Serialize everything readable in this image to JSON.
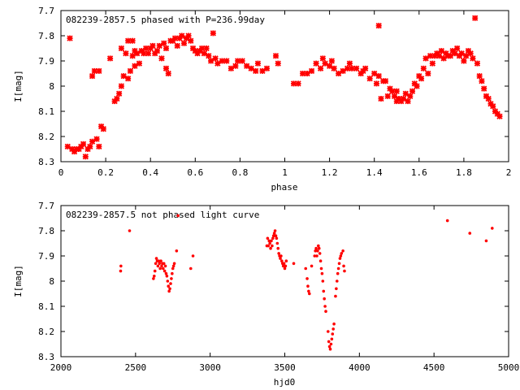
{
  "chart_data": [
    {
      "type": "scatter",
      "title": "082239-2857.5 phased with P=236.99day",
      "xlabel": "phase",
      "ylabel": "I[mag]",
      "xlim": [
        0,
        2
      ],
      "ylim": [
        8.3,
        7.7
      ],
      "y_inverted": true,
      "grid": false,
      "marker_color": "#ff0000",
      "xticks": [
        "0",
        "0.2",
        "0.4",
        "0.6",
        "0.8",
        "1",
        "1.2",
        "1.4",
        "1.6",
        "1.8",
        "2"
      ],
      "yticks": [
        "7.7",
        "7.8",
        "7.9",
        "8",
        "8.1",
        "8.2",
        "8.3"
      ],
      "points": [
        [
          0.03,
          8.24
        ],
        [
          0.04,
          7.81
        ],
        [
          0.05,
          8.25
        ],
        [
          0.06,
          8.26
        ],
        [
          0.07,
          8.25
        ],
        [
          0.08,
          8.25
        ],
        [
          0.09,
          8.24
        ],
        [
          0.1,
          8.23
        ],
        [
          0.11,
          8.28
        ],
        [
          0.12,
          8.25
        ],
        [
          0.13,
          8.24
        ],
        [
          0.14,
          8.22
        ],
        [
          0.14,
          7.96
        ],
        [
          0.15,
          7.94
        ],
        [
          0.16,
          8.21
        ],
        [
          0.17,
          7.94
        ],
        [
          0.17,
          8.24
        ],
        [
          0.18,
          8.16
        ],
        [
          0.19,
          8.17
        ],
        [
          0.22,
          7.89
        ],
        [
          0.24,
          8.06
        ],
        [
          0.25,
          8.05
        ],
        [
          0.26,
          8.03
        ],
        [
          0.27,
          8.0
        ],
        [
          0.27,
          7.85
        ],
        [
          0.28,
          7.96
        ],
        [
          0.29,
          7.87
        ],
        [
          0.3,
          7.82
        ],
        [
          0.3,
          7.97
        ],
        [
          0.31,
          7.94
        ],
        [
          0.32,
          7.82
        ],
        [
          0.32,
          7.88
        ],
        [
          0.33,
          7.92
        ],
        [
          0.33,
          7.86
        ],
        [
          0.34,
          7.87
        ],
        [
          0.35,
          7.91
        ],
        [
          0.36,
          7.86
        ],
        [
          0.37,
          7.87
        ],
        [
          0.38,
          7.85
        ],
        [
          0.39,
          7.87
        ],
        [
          0.4,
          7.85
        ],
        [
          0.41,
          7.84
        ],
        [
          0.42,
          7.87
        ],
        [
          0.43,
          7.86
        ],
        [
          0.44,
          7.84
        ],
        [
          0.45,
          7.89
        ],
        [
          0.46,
          7.83
        ],
        [
          0.47,
          7.85
        ],
        [
          0.47,
          7.93
        ],
        [
          0.48,
          7.95
        ],
        [
          0.49,
          7.82
        ],
        [
          0.5,
          7.82
        ],
        [
          0.51,
          7.81
        ],
        [
          0.52,
          7.84
        ],
        [
          0.53,
          7.81
        ],
        [
          0.54,
          7.8
        ],
        [
          0.55,
          7.83
        ],
        [
          0.56,
          7.81
        ],
        [
          0.57,
          7.8
        ],
        [
          0.58,
          7.82
        ],
        [
          0.59,
          7.85
        ],
        [
          0.6,
          7.86
        ],
        [
          0.61,
          7.87
        ],
        [
          0.62,
          7.86
        ],
        [
          0.63,
          7.85
        ],
        [
          0.64,
          7.87
        ],
        [
          0.65,
          7.85
        ],
        [
          0.66,
          7.88
        ],
        [
          0.67,
          7.9
        ],
        [
          0.68,
          7.79
        ],
        [
          0.69,
          7.89
        ],
        [
          0.7,
          7.91
        ],
        [
          0.72,
          7.9
        ],
        [
          0.74,
          7.9
        ],
        [
          0.76,
          7.93
        ],
        [
          0.78,
          7.92
        ],
        [
          0.79,
          7.9
        ],
        [
          0.81,
          7.9
        ],
        [
          0.83,
          7.92
        ],
        [
          0.85,
          7.93
        ],
        [
          0.87,
          7.94
        ],
        [
          0.88,
          7.91
        ],
        [
          0.9,
          7.94
        ],
        [
          0.92,
          7.93
        ],
        [
          0.96,
          7.88
        ],
        [
          0.97,
          7.91
        ],
        [
          1.04,
          7.99
        ],
        [
          1.06,
          7.99
        ],
        [
          1.08,
          7.95
        ],
        [
          1.1,
          7.95
        ],
        [
          1.12,
          7.94
        ],
        [
          1.14,
          7.91
        ],
        [
          1.16,
          7.93
        ],
        [
          1.17,
          7.89
        ],
        [
          1.18,
          7.91
        ],
        [
          1.2,
          7.92
        ],
        [
          1.21,
          7.9
        ],
        [
          1.22,
          7.93
        ],
        [
          1.24,
          7.95
        ],
        [
          1.26,
          7.94
        ],
        [
          1.28,
          7.93
        ],
        [
          1.29,
          7.91
        ],
        [
          1.3,
          7.93
        ],
        [
          1.32,
          7.93
        ],
        [
          1.34,
          7.95
        ],
        [
          1.35,
          7.94
        ],
        [
          1.36,
          7.93
        ],
        [
          1.38,
          7.97
        ],
        [
          1.4,
          7.95
        ],
        [
          1.41,
          7.99
        ],
        [
          1.42,
          7.96
        ],
        [
          1.42,
          7.76
        ],
        [
          1.43,
          8.05
        ],
        [
          1.44,
          7.98
        ],
        [
          1.45,
          7.98
        ],
        [
          1.46,
          8.04
        ],
        [
          1.47,
          8.01
        ],
        [
          1.48,
          8.02
        ],
        [
          1.49,
          8.04
        ],
        [
          1.5,
          8.02
        ],
        [
          1.5,
          8.06
        ],
        [
          1.51,
          8.05
        ],
        [
          1.52,
          8.06
        ],
        [
          1.53,
          8.05
        ],
        [
          1.54,
          8.03
        ],
        [
          1.55,
          8.06
        ],
        [
          1.56,
          8.04
        ],
        [
          1.57,
          8.02
        ],
        [
          1.58,
          7.99
        ],
        [
          1.59,
          8.0
        ],
        [
          1.6,
          7.96
        ],
        [
          1.61,
          7.97
        ],
        [
          1.62,
          7.93
        ],
        [
          1.63,
          7.89
        ],
        [
          1.64,
          7.95
        ],
        [
          1.65,
          7.88
        ],
        [
          1.66,
          7.91
        ],
        [
          1.67,
          7.88
        ],
        [
          1.68,
          7.87
        ],
        [
          1.69,
          7.88
        ],
        [
          1.7,
          7.86
        ],
        [
          1.71,
          7.89
        ],
        [
          1.72,
          7.87
        ],
        [
          1.73,
          7.88
        ],
        [
          1.74,
          7.88
        ],
        [
          1.75,
          7.86
        ],
        [
          1.76,
          7.87
        ],
        [
          1.77,
          7.85
        ],
        [
          1.78,
          7.88
        ],
        [
          1.79,
          7.87
        ],
        [
          1.8,
          7.9
        ],
        [
          1.81,
          7.88
        ],
        [
          1.82,
          7.86
        ],
        [
          1.83,
          7.87
        ],
        [
          1.84,
          7.89
        ],
        [
          1.85,
          7.73
        ],
        [
          1.86,
          7.91
        ],
        [
          1.87,
          7.96
        ],
        [
          1.88,
          7.98
        ],
        [
          1.89,
          8.01
        ],
        [
          1.9,
          8.04
        ],
        [
          1.91,
          8.05
        ],
        [
          1.92,
          8.07
        ],
        [
          1.93,
          8.08
        ],
        [
          1.94,
          8.1
        ],
        [
          1.95,
          8.11
        ],
        [
          1.96,
          8.12
        ]
      ]
    },
    {
      "type": "scatter",
      "title": "082239-2857.5 not phased light curve",
      "xlabel": "hjd0",
      "ylabel": "I[mag]",
      "xlim": [
        2000,
        5000
      ],
      "ylim": [
        8.3,
        7.7
      ],
      "y_inverted": true,
      "grid": false,
      "marker_color": "#ff0000",
      "xticks": [
        "2000",
        "2500",
        "3000",
        "3500",
        "4000",
        "4500",
        "5000"
      ],
      "yticks": [
        "7.7",
        "7.8",
        "7.9",
        "8",
        "8.1",
        "8.2",
        "8.3"
      ],
      "points": [
        [
          2400,
          7.96
        ],
        [
          2402,
          7.94
        ],
        [
          2460,
          7.8
        ],
        [
          2620,
          7.99
        ],
        [
          2625,
          7.98
        ],
        [
          2630,
          7.96
        ],
        [
          2635,
          7.93
        ],
        [
          2640,
          7.91
        ],
        [
          2645,
          7.92
        ],
        [
          2650,
          7.94
        ],
        [
          2655,
          7.92
        ],
        [
          2660,
          7.93
        ],
        [
          2665,
          7.95
        ],
        [
          2670,
          7.92
        ],
        [
          2675,
          7.94
        ],
        [
          2680,
          7.93
        ],
        [
          2685,
          7.95
        ],
        [
          2690,
          7.93
        ],
        [
          2695,
          7.96
        ],
        [
          2700,
          7.94
        ],
        [
          2705,
          7.97
        ],
        [
          2710,
          7.98
        ],
        [
          2715,
          8.0
        ],
        [
          2720,
          8.02
        ],
        [
          2725,
          8.04
        ],
        [
          2730,
          8.03
        ],
        [
          2735,
          8.01
        ],
        [
          2740,
          7.99
        ],
        [
          2745,
          7.97
        ],
        [
          2750,
          7.95
        ],
        [
          2755,
          7.94
        ],
        [
          2760,
          7.93
        ],
        [
          2775,
          7.88
        ],
        [
          2785,
          7.74
        ],
        [
          2870,
          7.95
        ],
        [
          2885,
          7.9
        ],
        [
          3380,
          7.86
        ],
        [
          3385,
          7.83
        ],
        [
          3390,
          7.86
        ],
        [
          3395,
          7.84
        ],
        [
          3400,
          7.85
        ],
        [
          3405,
          7.87
        ],
        [
          3410,
          7.84
        ],
        [
          3415,
          7.86
        ],
        [
          3420,
          7.83
        ],
        [
          3425,
          7.82
        ],
        [
          3430,
          7.81
        ],
        [
          3435,
          7.8
        ],
        [
          3440,
          7.82
        ],
        [
          3445,
          7.83
        ],
        [
          3450,
          7.85
        ],
        [
          3455,
          7.87
        ],
        [
          3460,
          7.89
        ],
        [
          3465,
          7.9
        ],
        [
          3470,
          7.91
        ],
        [
          3475,
          7.9
        ],
        [
          3480,
          7.92
        ],
        [
          3485,
          7.93
        ],
        [
          3490,
          7.94
        ],
        [
          3495,
          7.93
        ],
        [
          3500,
          7.95
        ],
        [
          3505,
          7.94
        ],
        [
          3510,
          7.92
        ],
        [
          3560,
          7.93
        ],
        [
          3640,
          7.95
        ],
        [
          3650,
          7.99
        ],
        [
          3655,
          8.02
        ],
        [
          3660,
          8.04
        ],
        [
          3665,
          8.05
        ],
        [
          3680,
          7.94
        ],
        [
          3700,
          7.9
        ],
        [
          3705,
          7.88
        ],
        [
          3710,
          7.87
        ],
        [
          3715,
          7.9
        ],
        [
          3720,
          7.88
        ],
        [
          3725,
          7.86
        ],
        [
          3730,
          7.87
        ],
        [
          3735,
          7.89
        ],
        [
          3740,
          7.92
        ],
        [
          3745,
          7.95
        ],
        [
          3750,
          7.97
        ],
        [
          3755,
          8.0
        ],
        [
          3760,
          8.04
        ],
        [
          3765,
          8.07
        ],
        [
          3770,
          8.1
        ],
        [
          3775,
          8.12
        ],
        [
          3790,
          8.2
        ],
        [
          3795,
          8.24
        ],
        [
          3800,
          8.26
        ],
        [
          3805,
          8.27
        ],
        [
          3810,
          8.25
        ],
        [
          3815,
          8.23
        ],
        [
          3820,
          8.21
        ],
        [
          3825,
          8.19
        ],
        [
          3830,
          8.17
        ],
        [
          3840,
          8.06
        ],
        [
          3845,
          8.03
        ],
        [
          3850,
          8.0
        ],
        [
          3855,
          7.97
        ],
        [
          3860,
          7.95
        ],
        [
          3865,
          7.93
        ],
        [
          3870,
          7.91
        ],
        [
          3875,
          7.9
        ],
        [
          3880,
          7.89
        ],
        [
          3890,
          7.88
        ],
        [
          3895,
          7.94
        ],
        [
          3900,
          7.96
        ],
        [
          4590,
          7.76
        ],
        [
          4740,
          7.81
        ],
        [
          4850,
          7.84
        ],
        [
          4890,
          7.79
        ]
      ]
    }
  ]
}
